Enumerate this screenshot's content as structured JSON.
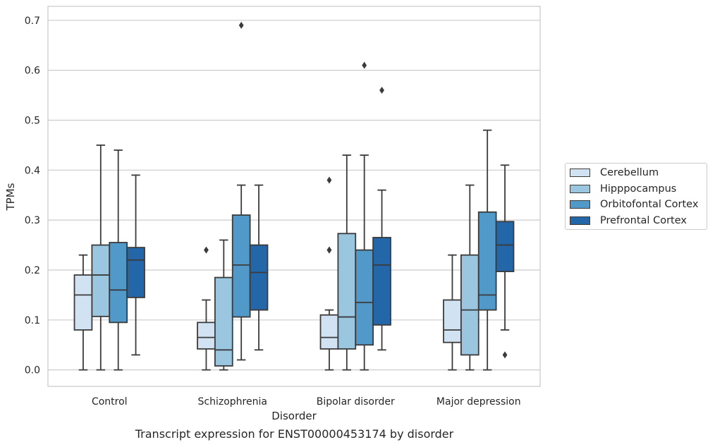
{
  "chart_data": {
    "type": "box",
    "title": "Transcript expression for ENST00000453174 by disorder",
    "xlabel": "Disorder",
    "ylabel": "TPMs",
    "ylim": [
      -0.033,
      0.728
    ],
    "yticks": [
      "0.0",
      "0.1",
      "0.2",
      "0.3",
      "0.4",
      "0.5",
      "0.6",
      "0.7"
    ],
    "categories": [
      "Control",
      "Schizophrenia",
      "Bipolar disorder",
      "Major depression"
    ],
    "grid": true,
    "legend_position": "right",
    "series": [
      {
        "name": "Cerebellum",
        "color": "#d1e2f2",
        "boxes": [
          {
            "whislo": 0.0,
            "q1": 0.08,
            "med": 0.15,
            "q3": 0.19,
            "whishi": 0.23,
            "fliers": []
          },
          {
            "whislo": 0.0,
            "q1": 0.042,
            "med": 0.065,
            "q3": 0.095,
            "whishi": 0.14,
            "fliers": [
              0.24
            ]
          },
          {
            "whislo": 0.0,
            "q1": 0.042,
            "med": 0.065,
            "q3": 0.11,
            "whishi": 0.12,
            "fliers": [
              0.24,
              0.24,
              0.38
            ]
          },
          {
            "whislo": 0.0,
            "q1": 0.055,
            "med": 0.08,
            "q3": 0.14,
            "whishi": 0.23,
            "fliers": []
          }
        ]
      },
      {
        "name": "Hipppocampus",
        "color": "#9ac6e0",
        "boxes": [
          {
            "whislo": 0.0,
            "q1": 0.107,
            "med": 0.19,
            "q3": 0.25,
            "whishi": 0.45,
            "fliers": []
          },
          {
            "whislo": 0.0,
            "q1": 0.008,
            "med": 0.04,
            "q3": 0.185,
            "whishi": 0.26,
            "fliers": []
          },
          {
            "whislo": 0.0,
            "q1": 0.042,
            "med": 0.106,
            "q3": 0.273,
            "whishi": 0.43,
            "fliers": []
          },
          {
            "whislo": 0.0,
            "q1": 0.03,
            "med": 0.12,
            "q3": 0.23,
            "whishi": 0.37,
            "fliers": []
          }
        ]
      },
      {
        "name": "Orbitofontal Cortex",
        "color": "#5199c8",
        "boxes": [
          {
            "whislo": 0.0,
            "q1": 0.095,
            "med": 0.16,
            "q3": 0.255,
            "whishi": 0.44,
            "fliers": []
          },
          {
            "whislo": 0.02,
            "q1": 0.106,
            "med": 0.21,
            "q3": 0.31,
            "whishi": 0.37,
            "fliers": [
              0.69
            ]
          },
          {
            "whislo": 0.0,
            "q1": 0.05,
            "med": 0.135,
            "q3": 0.24,
            "whishi": 0.43,
            "fliers": [
              0.61
            ]
          },
          {
            "whislo": 0.0,
            "q1": 0.12,
            "med": 0.15,
            "q3": 0.316,
            "whishi": 0.48,
            "fliers": []
          }
        ]
      },
      {
        "name": "Prefrontal Cortex",
        "color": "#2467a9",
        "boxes": [
          {
            "whislo": 0.03,
            "q1": 0.145,
            "med": 0.22,
            "q3": 0.245,
            "whishi": 0.39,
            "fliers": []
          },
          {
            "whislo": 0.04,
            "q1": 0.12,
            "med": 0.195,
            "q3": 0.25,
            "whishi": 0.37,
            "fliers": []
          },
          {
            "whislo": 0.04,
            "q1": 0.09,
            "med": 0.21,
            "q3": 0.265,
            "whishi": 0.36,
            "fliers": [
              0.56
            ]
          },
          {
            "whislo": 0.08,
            "q1": 0.197,
            "med": 0.25,
            "q3": 0.297,
            "whishi": 0.41,
            "fliers": [
              0.03
            ]
          }
        ]
      }
    ]
  }
}
